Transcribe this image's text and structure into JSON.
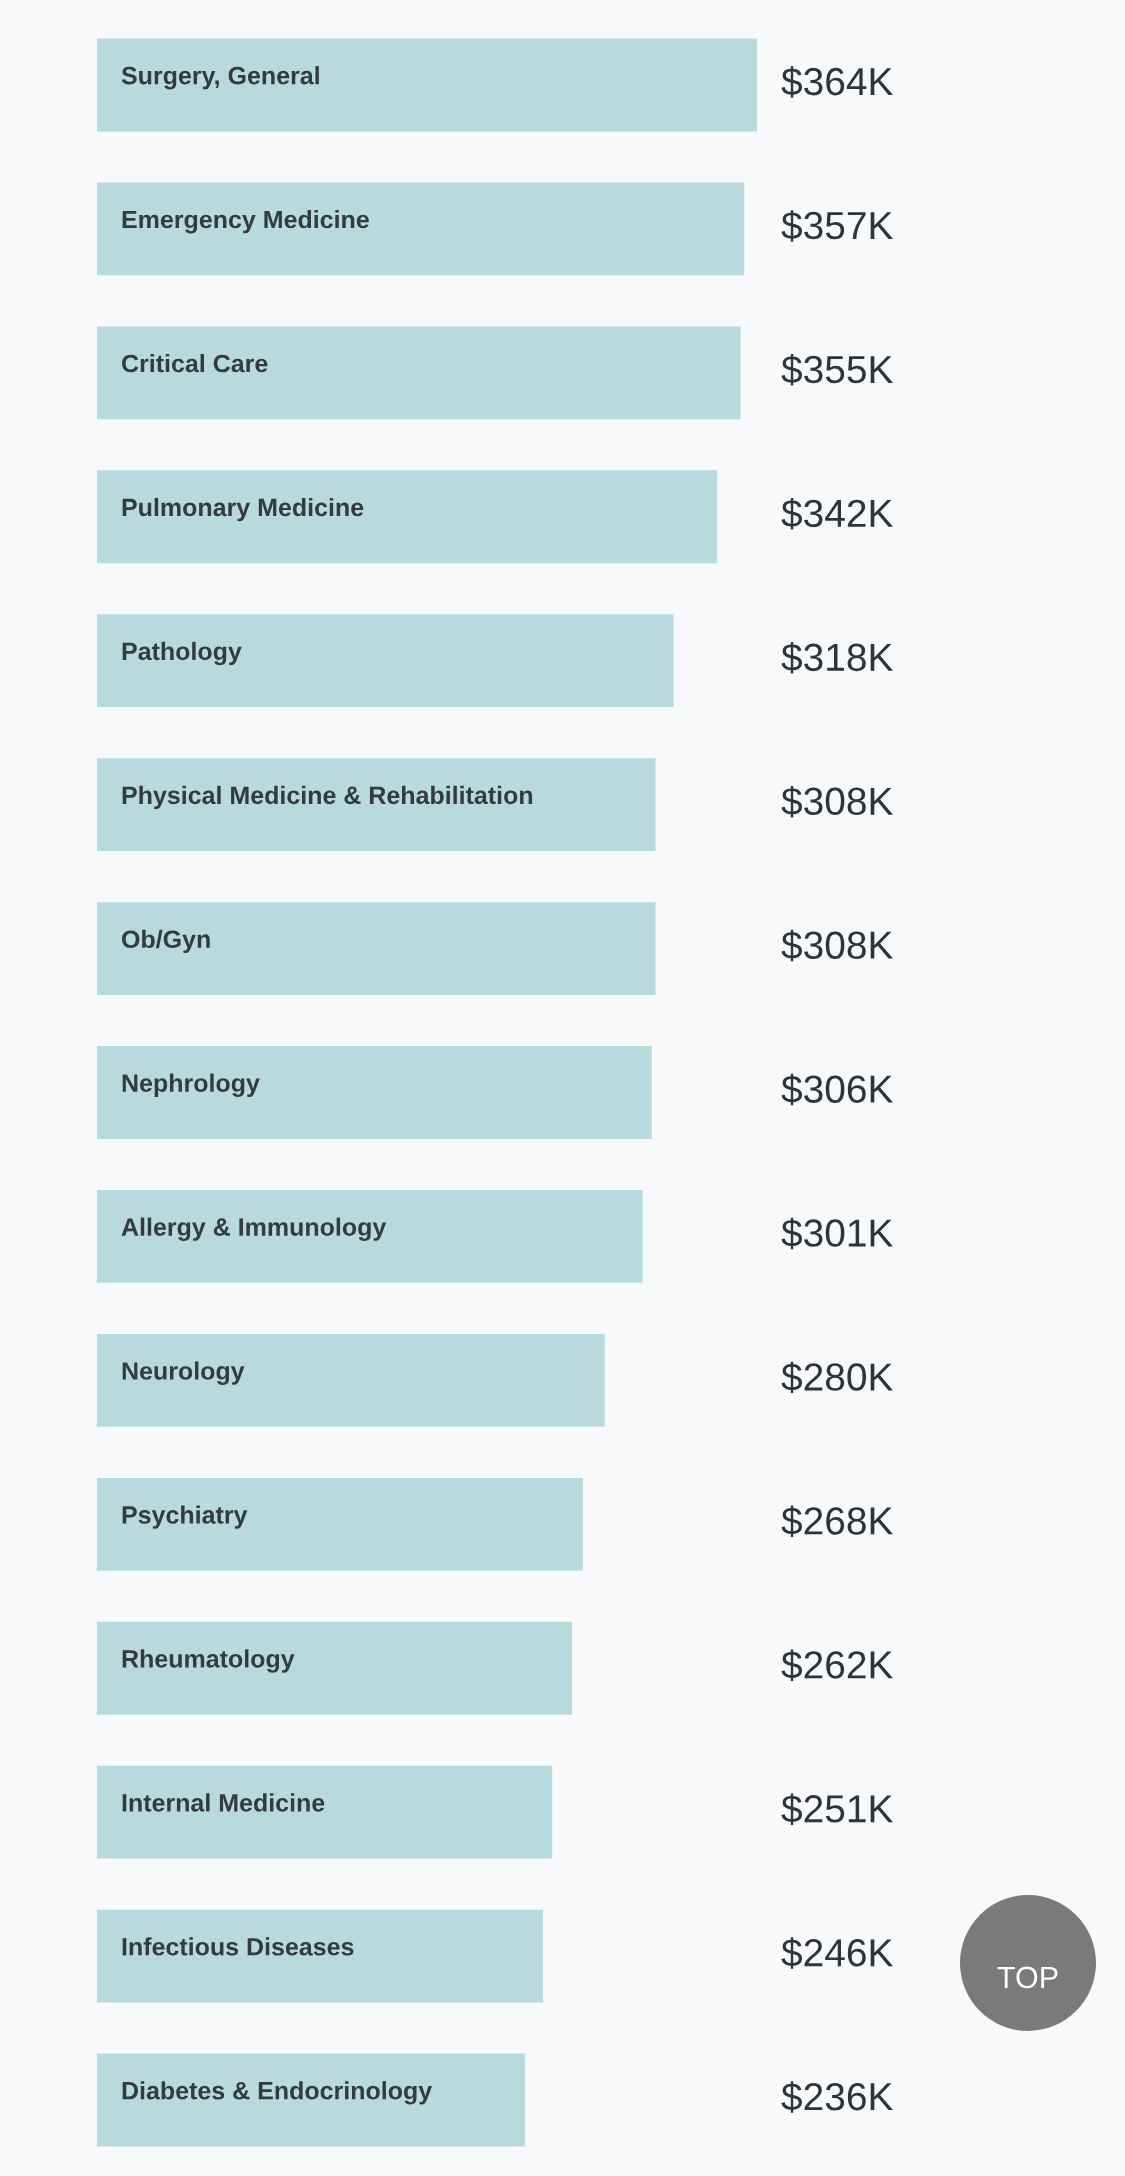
{
  "chart_data": {
    "type": "bar",
    "orientation": "horizontal",
    "categories": [
      "Surgery, General",
      "Emergency Medicine",
      "Critical Care",
      "Pulmonary Medicine",
      "Pathology",
      "Physical Medicine & Rehabilitation",
      "Ob/Gyn",
      "Nephrology",
      "Allergy & Immunology",
      "Neurology",
      "Psychiatry",
      "Rheumatology",
      "Internal Medicine",
      "Infectious Diseases",
      "Diabetes & Endocrinology"
    ],
    "values": [
      364,
      357,
      355,
      342,
      318,
      308,
      308,
      306,
      301,
      280,
      268,
      262,
      251,
      246,
      236
    ],
    "value_labels": [
      "$364K",
      "$357K",
      "$355K",
      "$342K",
      "$318K",
      "$308K",
      "$308K",
      "$306K",
      "$301K",
      "$280K",
      "$268K",
      "$262K",
      "$251K",
      "$246K",
      "$236K"
    ],
    "color": "#b9dadc",
    "annotations": [
      "TOP"
    ]
  }
}
